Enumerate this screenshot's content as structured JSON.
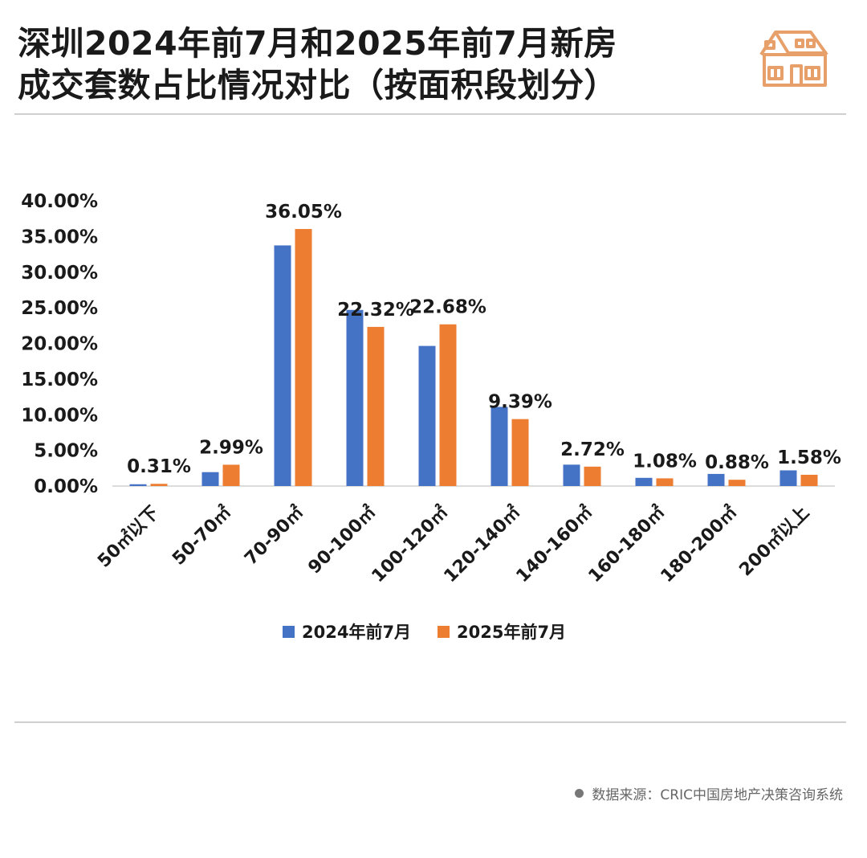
{
  "title": {
    "line1": "深圳2024年前7月和2025年前7月新房",
    "line2": "成交套数占比情况对比（按面积段划分）"
  },
  "source": "数据来源：CRIC中国房地产决策咨询系统",
  "colors": {
    "series2024": "#4472C4",
    "series2025": "#ED7D31",
    "logo": "#E8A06A",
    "text": "#1a1a1a"
  },
  "chart_data": {
    "type": "bar",
    "categories": [
      "50㎡以下",
      "50-70㎡",
      "70-90㎡",
      "90-100㎡",
      "100-120㎡",
      "120-140㎡",
      "140-160㎡",
      "160-180㎡",
      "180-200㎡",
      "200㎡以上"
    ],
    "series": [
      {
        "name": "2024年前7月",
        "values": [
          0.25,
          1.95,
          33.75,
          24.7,
          19.65,
          11.1,
          3.0,
          1.15,
          1.7,
          2.2
        ]
      },
      {
        "name": "2025年前7月",
        "values": [
          0.31,
          2.99,
          36.05,
          22.32,
          22.68,
          9.39,
          2.72,
          1.08,
          0.88,
          1.58
        ]
      }
    ],
    "data_labels": [
      "0.31%",
      "2.99%",
      "36.05%",
      "22.32%",
      "22.68%",
      "9.39%",
      "2.72%",
      "1.08%",
      "0.88%",
      "1.58%"
    ],
    "yticks": [
      "0.00%",
      "5.00%",
      "10.00%",
      "15.00%",
      "20.00%",
      "25.00%",
      "30.00%",
      "35.00%",
      "40.00%"
    ],
    "ylim": [
      0,
      40
    ],
    "legend_position": "bottom",
    "grid": false
  }
}
